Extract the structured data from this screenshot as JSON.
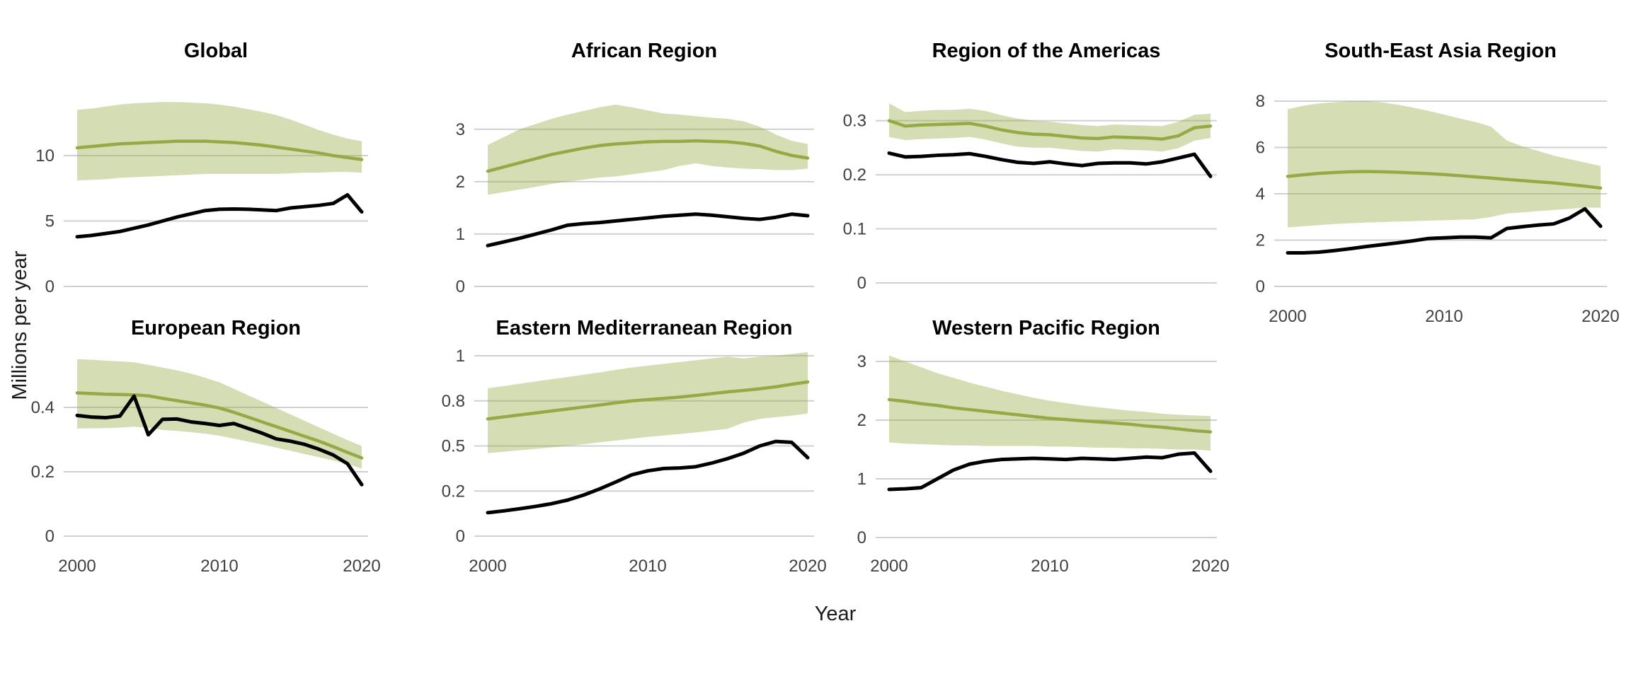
{
  "figure": {
    "y_axis_title": "Millions per year",
    "x_axis_title": "Year",
    "colors": {
      "estimate_line": "#94aa44",
      "uncertainty_band": "#94aa44",
      "band_opacity": 0.4,
      "observed_line": "#000000",
      "gridline": "#d0d0d0",
      "axis_text": "#404040",
      "title_text": "#000000"
    }
  },
  "chart_data": {
    "type": "line",
    "x_label": "Year",
    "y_label": "Millions per year",
    "years": [
      2000,
      2001,
      2002,
      2003,
      2004,
      2005,
      2006,
      2007,
      2008,
      2009,
      2010,
      2011,
      2012,
      2013,
      2014,
      2015,
      2016,
      2017,
      2018,
      2019,
      2020
    ],
    "xtick_years": [
      2000,
      2010,
      2020
    ],
    "xtick_labels": [
      "2000",
      "2010",
      "2020"
    ],
    "legend": "none",
    "grid": "horizontal-only",
    "panels": [
      {
        "title": "Global",
        "ylim": [
          0,
          17.3
        ],
        "yticks": [
          {
            "v": 0,
            "label": "0"
          },
          {
            "v": 5,
            "label": "5"
          },
          {
            "v": 10,
            "label": "10"
          }
        ],
        "show_xticks": false,
        "band": {
          "upper": [
            13.5,
            13.6,
            13.75,
            13.9,
            14.0,
            14.05,
            14.1,
            14.1,
            14.05,
            14.0,
            13.9,
            13.75,
            13.55,
            13.35,
            13.1,
            12.75,
            12.35,
            11.95,
            11.6,
            11.3,
            11.1
          ],
          "lower": [
            8.1,
            8.15,
            8.2,
            8.3,
            8.35,
            8.4,
            8.45,
            8.5,
            8.55,
            8.6,
            8.6,
            8.6,
            8.6,
            8.6,
            8.6,
            8.65,
            8.7,
            8.7,
            8.75,
            8.75,
            8.7
          ]
        },
        "series": [
          {
            "name": "green",
            "values": [
              10.6,
              10.7,
              10.8,
              10.9,
              10.95,
              11.0,
              11.05,
              11.1,
              11.1,
              11.1,
              11.05,
              11.0,
              10.9,
              10.8,
              10.65,
              10.5,
              10.35,
              10.2,
              10.0,
              9.85,
              9.7
            ]
          },
          {
            "name": "black",
            "values": [
              3.8,
              3.9,
              4.05,
              4.2,
              4.45,
              4.7,
              5.0,
              5.3,
              5.55,
              5.8,
              5.9,
              5.92,
              5.9,
              5.85,
              5.8,
              6.0,
              6.1,
              6.2,
              6.35,
              7.0,
              5.7
            ]
          }
        ]
      },
      {
        "title": "African Region",
        "ylim": [
          0,
          4.32
        ],
        "yticks": [
          {
            "v": 0,
            "label": "0"
          },
          {
            "v": 1,
            "label": "1"
          },
          {
            "v": 2,
            "label": "2"
          },
          {
            "v": 3,
            "label": "3"
          }
        ],
        "show_xticks": false,
        "band": {
          "upper": [
            2.7,
            2.85,
            3.0,
            3.1,
            3.2,
            3.28,
            3.35,
            3.42,
            3.47,
            3.42,
            3.36,
            3.3,
            3.28,
            3.25,
            3.22,
            3.2,
            3.15,
            3.05,
            2.9,
            2.78,
            2.72
          ],
          "lower": [
            1.75,
            1.8,
            1.85,
            1.9,
            1.96,
            2.0,
            2.04,
            2.08,
            2.1,
            2.14,
            2.18,
            2.22,
            2.3,
            2.35,
            2.3,
            2.27,
            2.25,
            2.24,
            2.22,
            2.22,
            2.25
          ]
        },
        "series": [
          {
            "name": "green",
            "values": [
              2.2,
              2.28,
              2.36,
              2.44,
              2.52,
              2.58,
              2.64,
              2.69,
              2.72,
              2.74,
              2.76,
              2.77,
              2.77,
              2.78,
              2.77,
              2.76,
              2.73,
              2.68,
              2.58,
              2.5,
              2.45
            ]
          },
          {
            "name": "black",
            "values": [
              0.78,
              0.85,
              0.92,
              1.0,
              1.08,
              1.17,
              1.2,
              1.22,
              1.25,
              1.28,
              1.31,
              1.34,
              1.36,
              1.38,
              1.36,
              1.33,
              1.3,
              1.28,
              1.32,
              1.38,
              1.35
            ]
          }
        ]
      },
      {
        "title": "Region of the Americas",
        "ylim": [
          0,
          0.412
        ],
        "yticks": [
          {
            "v": 0,
            "label": "0"
          },
          {
            "v": 0.1,
            "label": "0.1"
          },
          {
            "v": 0.2,
            "label": "0.2"
          },
          {
            "v": 0.3,
            "label": "0.3"
          }
        ],
        "show_xticks": false,
        "band": {
          "upper": [
            0.332,
            0.316,
            0.318,
            0.32,
            0.32,
            0.322,
            0.318,
            0.31,
            0.304,
            0.3,
            0.298,
            0.295,
            0.292,
            0.29,
            0.293,
            0.292,
            0.291,
            0.29,
            0.298,
            0.311,
            0.313
          ],
          "lower": [
            0.27,
            0.264,
            0.266,
            0.267,
            0.268,
            0.27,
            0.265,
            0.258,
            0.252,
            0.25,
            0.25,
            0.247,
            0.244,
            0.243,
            0.247,
            0.246,
            0.245,
            0.243,
            0.249,
            0.263,
            0.268
          ]
        },
        "series": [
          {
            "name": "green",
            "values": [
              0.3,
              0.29,
              0.292,
              0.293,
              0.294,
              0.295,
              0.29,
              0.283,
              0.278,
              0.275,
              0.274,
              0.271,
              0.268,
              0.267,
              0.27,
              0.269,
              0.268,
              0.266,
              0.272,
              0.287,
              0.29
            ]
          },
          {
            "name": "black",
            "values": [
              0.24,
              0.233,
              0.234,
              0.236,
              0.237,
              0.239,
              0.234,
              0.228,
              0.223,
              0.221,
              0.224,
              0.22,
              0.217,
              0.221,
              0.222,
              0.222,
              0.22,
              0.224,
              0.231,
              0.238,
              0.197
            ]
          }
        ]
      },
      {
        "title": "South-East Asia Region",
        "ylim": [
          0,
          9.77
        ],
        "yticks": [
          {
            "v": 0,
            "label": "0"
          },
          {
            "v": 2,
            "label": "2"
          },
          {
            "v": 4,
            "label": "4"
          },
          {
            "v": 6,
            "label": "6"
          },
          {
            "v": 8,
            "label": "8"
          }
        ],
        "show_xticks": true,
        "band": {
          "upper": [
            7.65,
            7.8,
            7.9,
            7.95,
            8.0,
            8.0,
            7.95,
            7.85,
            7.72,
            7.58,
            7.42,
            7.25,
            7.1,
            6.9,
            6.3,
            6.05,
            5.85,
            5.65,
            5.5,
            5.35,
            5.2
          ],
          "lower": [
            2.55,
            2.6,
            2.65,
            2.7,
            2.73,
            2.76,
            2.78,
            2.8,
            2.82,
            2.84,
            2.86,
            2.88,
            2.9,
            3.0,
            3.15,
            3.2,
            3.25,
            3.3,
            3.35,
            3.4,
            3.4
          ]
        },
        "series": [
          {
            "name": "green",
            "values": [
              4.75,
              4.82,
              4.88,
              4.92,
              4.95,
              4.96,
              4.95,
              4.93,
              4.9,
              4.87,
              4.83,
              4.78,
              4.73,
              4.68,
              4.62,
              4.57,
              4.52,
              4.47,
              4.4,
              4.33,
              4.25
            ]
          },
          {
            "name": "black",
            "values": [
              1.45,
              1.45,
              1.48,
              1.55,
              1.63,
              1.72,
              1.8,
              1.88,
              1.97,
              2.07,
              2.1,
              2.13,
              2.13,
              2.1,
              2.5,
              2.58,
              2.65,
              2.7,
              2.95,
              3.35,
              2.6
            ]
          }
        ]
      },
      {
        "title": "European Region",
        "ylim": [
          0,
          0.589
        ],
        "yticks": [
          {
            "v": 0,
            "label": "0"
          },
          {
            "v": 0.2,
            "label": "0.2"
          },
          {
            "v": 0.4,
            "label": "0.4"
          }
        ],
        "show_xticks": true,
        "band": {
          "upper": [
            0.55,
            0.548,
            0.545,
            0.543,
            0.54,
            0.532,
            0.524,
            0.515,
            0.505,
            0.492,
            0.478,
            0.458,
            0.438,
            0.418,
            0.398,
            0.378,
            0.358,
            0.338,
            0.318,
            0.298,
            0.28
          ],
          "lower": [
            0.335,
            0.335,
            0.336,
            0.337,
            0.34,
            0.336,
            0.33,
            0.327,
            0.323,
            0.318,
            0.312,
            0.303,
            0.294,
            0.285,
            0.275,
            0.265,
            0.255,
            0.245,
            0.235,
            0.224,
            0.21
          ]
        },
        "series": [
          {
            "name": "green",
            "values": [
              0.445,
              0.443,
              0.441,
              0.44,
              0.439,
              0.436,
              0.428,
              0.421,
              0.414,
              0.407,
              0.398,
              0.385,
              0.37,
              0.355,
              0.34,
              0.325,
              0.31,
              0.295,
              0.278,
              0.26,
              0.243
            ]
          },
          {
            "name": "black",
            "values": [
              0.375,
              0.37,
              0.368,
              0.373,
              0.435,
              0.315,
              0.363,
              0.364,
              0.355,
              0.35,
              0.344,
              0.35,
              0.335,
              0.32,
              0.302,
              0.295,
              0.285,
              0.27,
              0.252,
              0.225,
              0.16
            ]
          }
        ]
      },
      {
        "title": "Eastern Mediterranean Region",
        "ylim": [
          0,
          1.051
        ],
        "yticks": [
          {
            "v": 0,
            "label": "0"
          },
          {
            "v": 0.25,
            "label": "0.2"
          },
          {
            "v": 0.5,
            "label": "0.5"
          },
          {
            "v": 0.75,
            "label": "0.8"
          },
          {
            "v": 1,
            "label": "1"
          }
        ],
        "show_xticks": true,
        "band": {
          "upper": [
            0.82,
            0.832,
            0.845,
            0.858,
            0.87,
            0.882,
            0.895,
            0.908,
            0.922,
            0.935,
            0.945,
            0.955,
            0.965,
            0.975,
            0.985,
            0.995,
            0.985,
            0.995,
            1.0,
            1.01,
            1.02
          ],
          "lower": [
            0.46,
            0.468,
            0.476,
            0.484,
            0.492,
            0.5,
            0.51,
            0.52,
            0.53,
            0.54,
            0.55,
            0.558,
            0.566,
            0.575,
            0.585,
            0.595,
            0.63,
            0.65,
            0.66,
            0.668,
            0.68
          ]
        },
        "series": [
          {
            "name": "green",
            "values": [
              0.65,
              0.661,
              0.672,
              0.683,
              0.694,
              0.705,
              0.716,
              0.727,
              0.739,
              0.75,
              0.757,
              0.764,
              0.771,
              0.78,
              0.79,
              0.8,
              0.808,
              0.817,
              0.828,
              0.842,
              0.855
            ]
          },
          {
            "name": "black",
            "values": [
              0.13,
              0.14,
              0.152,
              0.165,
              0.18,
              0.2,
              0.228,
              0.262,
              0.3,
              0.34,
              0.362,
              0.375,
              0.378,
              0.385,
              0.405,
              0.43,
              0.46,
              0.5,
              0.525,
              0.52,
              0.435
            ]
          }
        ]
      },
      {
        "title": "Western Pacific Region",
        "ylim": [
          0,
          3.253
        ],
        "yticks": [
          {
            "v": 0,
            "label": "0"
          },
          {
            "v": 1,
            "label": "1"
          },
          {
            "v": 2,
            "label": "2"
          },
          {
            "v": 3,
            "label": "3"
          }
        ],
        "show_xticks": true,
        "band": {
          "upper": [
            3.1,
            3.0,
            2.9,
            2.8,
            2.72,
            2.64,
            2.57,
            2.5,
            2.44,
            2.38,
            2.33,
            2.29,
            2.25,
            2.22,
            2.19,
            2.16,
            2.14,
            2.11,
            2.09,
            2.08,
            2.07
          ],
          "lower": [
            1.62,
            1.6,
            1.59,
            1.58,
            1.57,
            1.57,
            1.56,
            1.56,
            1.56,
            1.56,
            1.55,
            1.55,
            1.54,
            1.53,
            1.53,
            1.52,
            1.52,
            1.51,
            1.5,
            1.5,
            1.48
          ]
        },
        "series": [
          {
            "name": "green",
            "values": [
              2.35,
              2.32,
              2.28,
              2.25,
              2.21,
              2.18,
              2.15,
              2.12,
              2.09,
              2.06,
              2.03,
              2.01,
              1.99,
              1.97,
              1.95,
              1.93,
              1.9,
              1.88,
              1.85,
              1.82,
              1.8
            ]
          },
          {
            "name": "black",
            "values": [
              0.82,
              0.83,
              0.85,
              1.0,
              1.15,
              1.25,
              1.3,
              1.33,
              1.34,
              1.35,
              1.34,
              1.33,
              1.35,
              1.34,
              1.33,
              1.35,
              1.37,
              1.36,
              1.42,
              1.44,
              1.13
            ]
          }
        ]
      }
    ]
  }
}
